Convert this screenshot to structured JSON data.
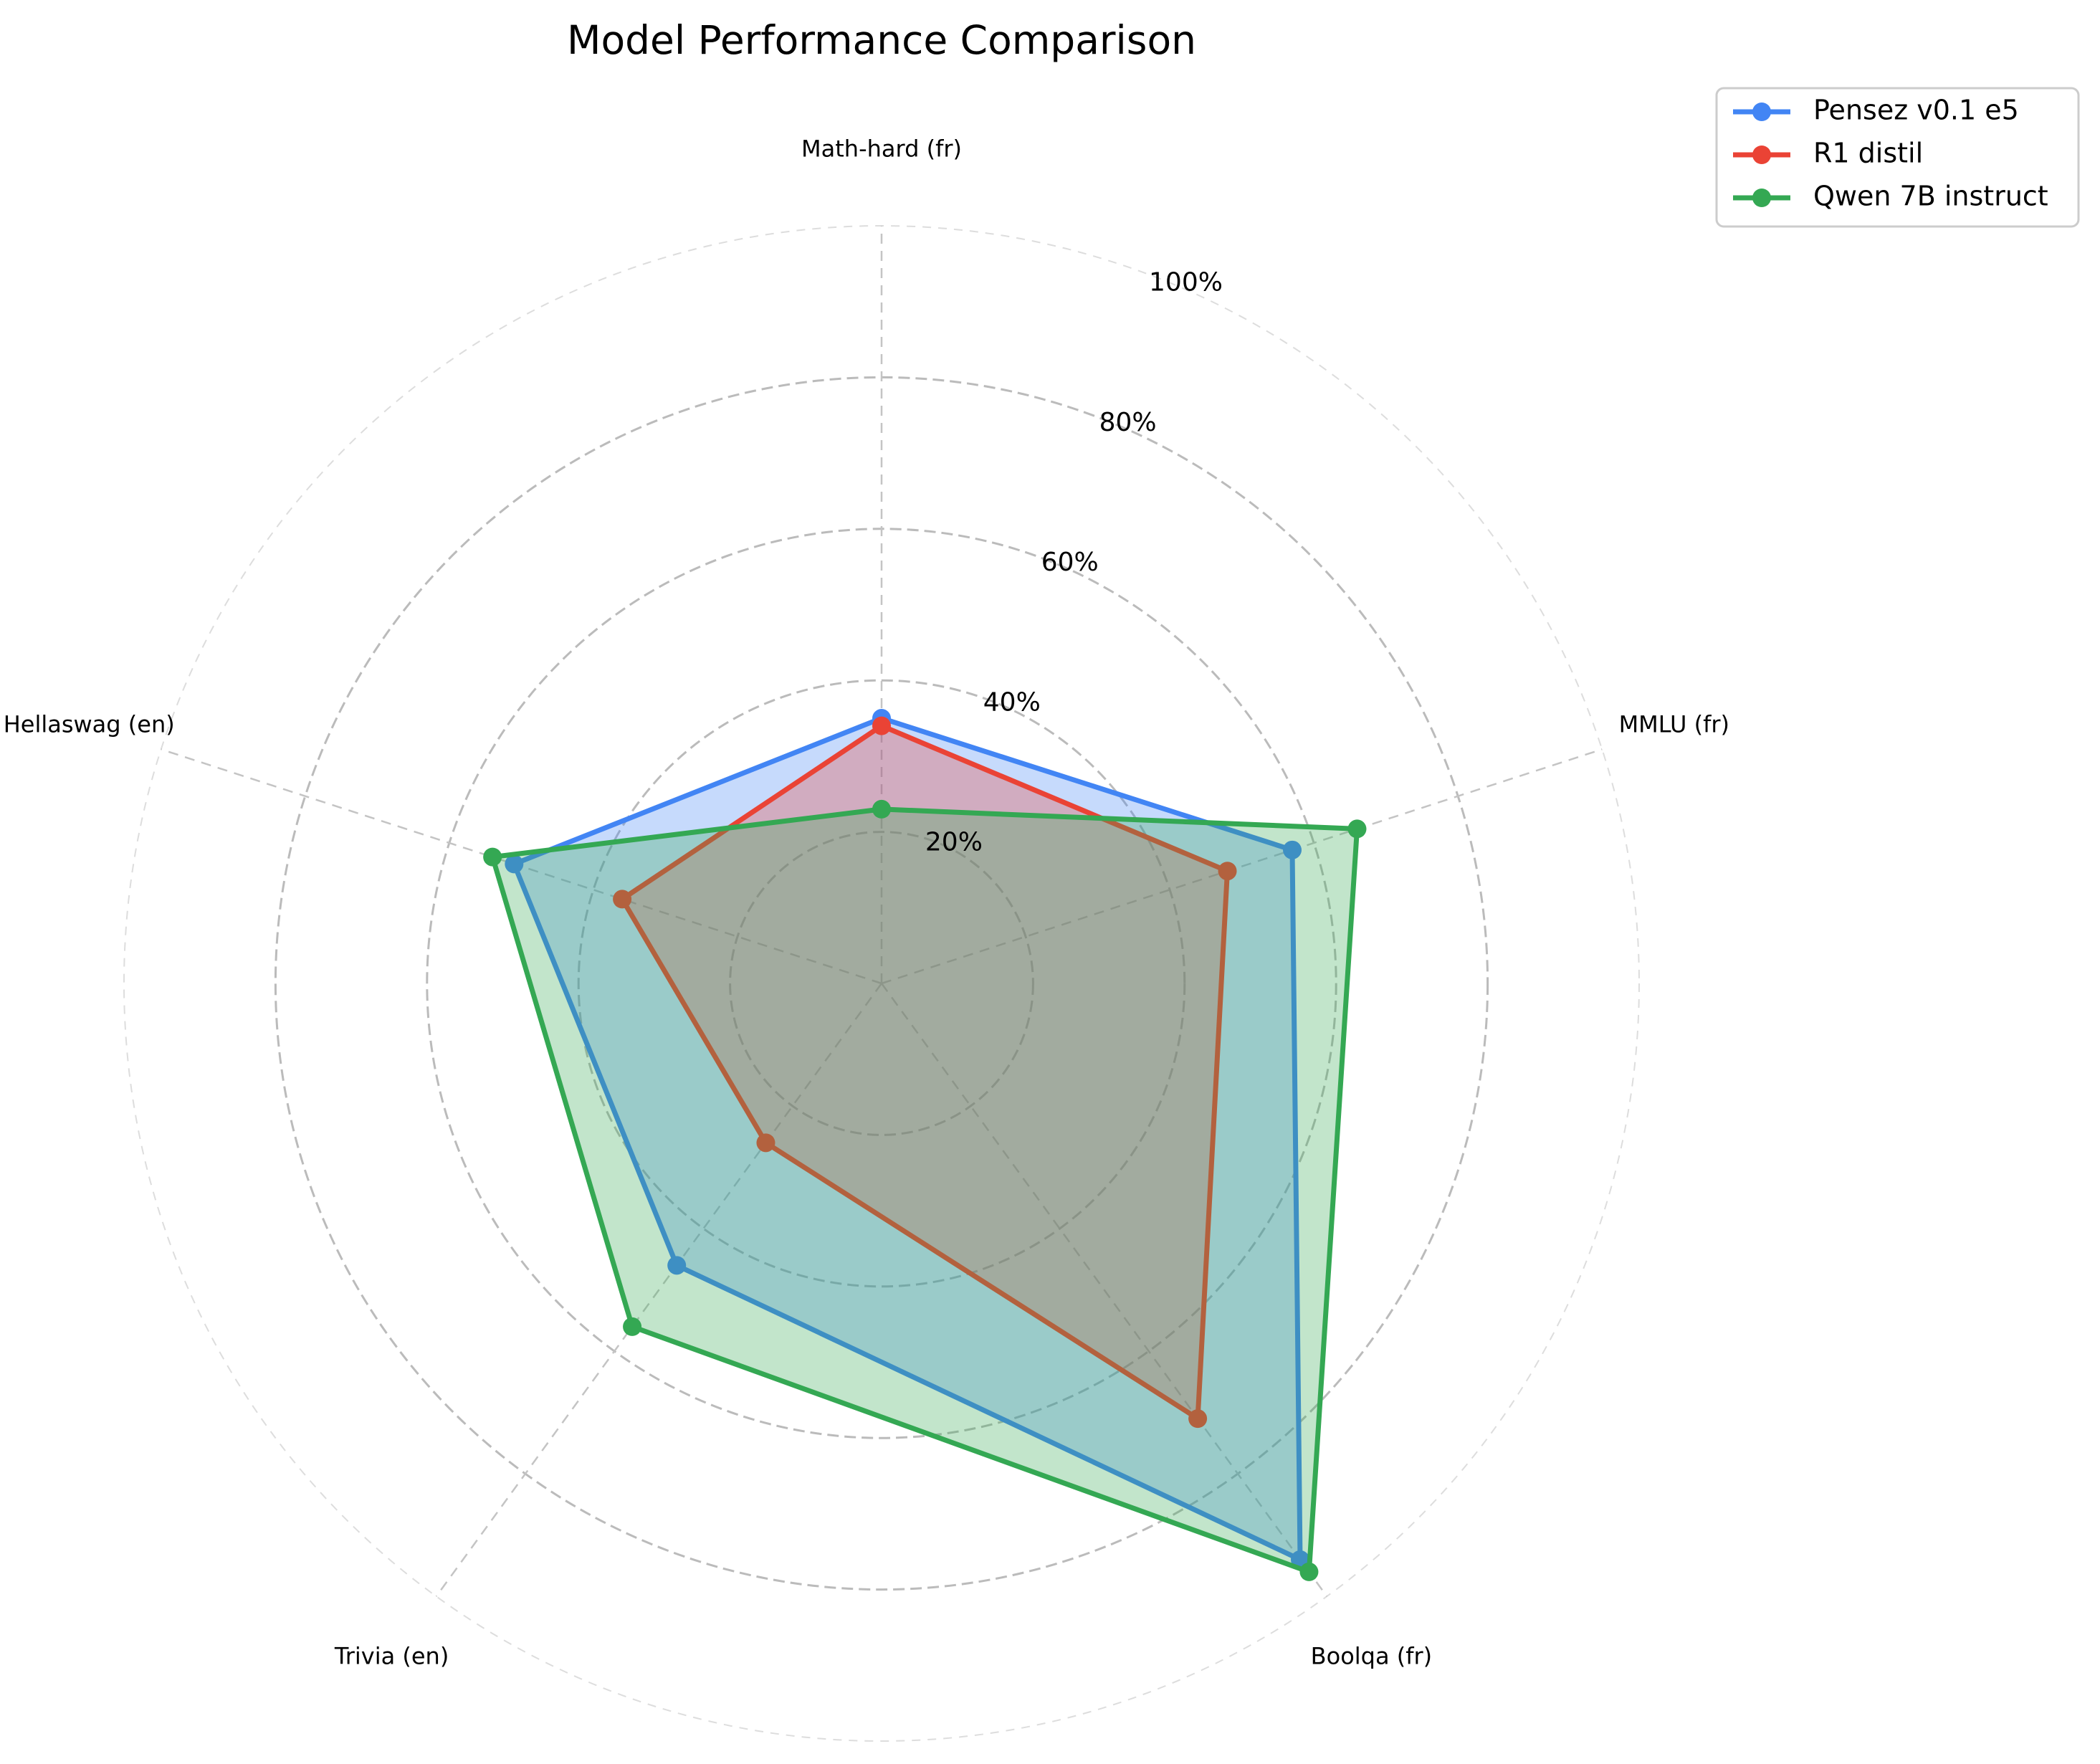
{
  "chart_data": {
    "type": "radar",
    "title": "Model Performance Comparison",
    "axes": [
      "Math-hard (fr)",
      "MMLU (fr)",
      "Boolqa (fr)",
      "Trivia (en)",
      "Hellaswag (en)"
    ],
    "rlim": [
      0,
      100
    ],
    "rticks": [
      20,
      40,
      60,
      80,
      100
    ],
    "rtick_labels": [
      "20%",
      "40%",
      "60%",
      "80%",
      "100%"
    ],
    "grid": true,
    "legend_position": "top-right",
    "series": [
      {
        "name": "Pensez v0.1 e5",
        "color": "#4285F4",
        "values": [
          35,
          57,
          94,
          46,
          51
        ]
      },
      {
        "name": "R1 distil",
        "color": "#EA4335",
        "values": [
          34,
          48,
          71,
          26,
          36
        ]
      },
      {
        "name": "Qwen 7B instruct",
        "color": "#34A853",
        "values": [
          23,
          66,
          96,
          56,
          54
        ]
      }
    ]
  }
}
